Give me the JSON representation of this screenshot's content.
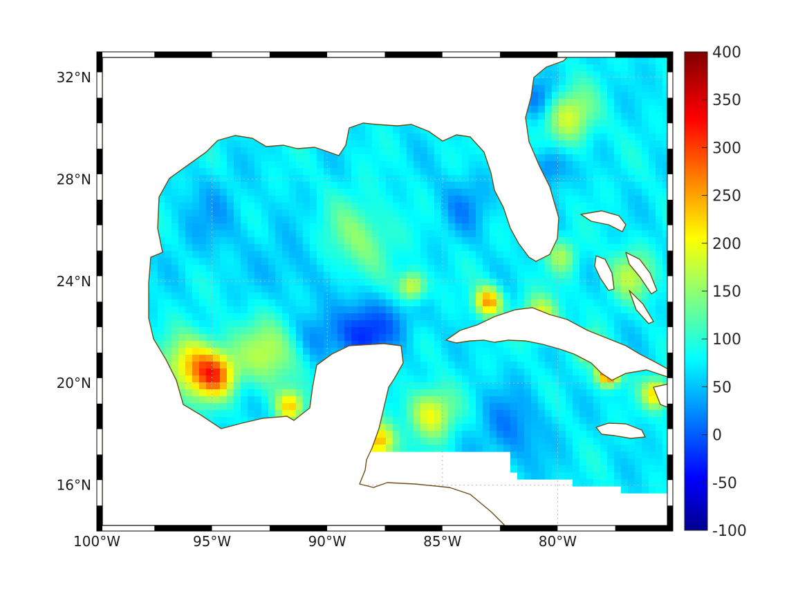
{
  "map": {
    "lon_range": [
      -100,
      -75
    ],
    "lat_range": [
      14.2,
      33
    ],
    "x_ticks": [
      {
        "lon": -100,
        "label": "100°W"
      },
      {
        "lon": -95,
        "label": "95°W"
      },
      {
        "lon": -90,
        "label": "90°W"
      },
      {
        "lon": -85,
        "label": "85°W"
      },
      {
        "lon": -80,
        "label": "80°W"
      }
    ],
    "y_ticks": [
      {
        "lat": 32,
        "label": "32°N"
      },
      {
        "lat": 28,
        "label": "28°N"
      },
      {
        "lat": 24,
        "label": "24°N"
      },
      {
        "lat": 20,
        "label": "20°N"
      },
      {
        "lat": 16,
        "label": "16°N"
      }
    ],
    "grid": true,
    "coastline_color": "#6b4a12"
  },
  "colorbar": {
    "min": -100,
    "max": 400,
    "colormap": "jet",
    "tick_labels": [
      "400",
      "350",
      "300",
      "250",
      "200",
      "150",
      "100",
      "50",
      "0",
      "-50",
      "-100"
    ]
  },
  "field": {
    "background_value": 80,
    "blobs": [
      {
        "lon": -95.8,
        "lat": 20.7,
        "r": 1.2,
        "v": 230
      },
      {
        "lon": -94.8,
        "lat": 20.3,
        "r": 0.9,
        "v": 240
      },
      {
        "lon": -92.5,
        "lat": 21.2,
        "r": 1.3,
        "v": 180
      },
      {
        "lon": -91.6,
        "lat": 19.1,
        "r": 0.6,
        "v": 220
      },
      {
        "lon": -87.8,
        "lat": 17.7,
        "r": 0.7,
        "v": 260
      },
      {
        "lon": -85.5,
        "lat": 18.8,
        "r": 1.0,
        "v": 210
      },
      {
        "lon": -86.3,
        "lat": 23.8,
        "r": 0.6,
        "v": 210
      },
      {
        "lon": -83.0,
        "lat": 23.2,
        "r": 0.6,
        "v": 260
      },
      {
        "lon": -80.7,
        "lat": 22.6,
        "r": 0.8,
        "v": 200
      },
      {
        "lon": -77.8,
        "lat": 20.4,
        "r": 0.5,
        "v": 320
      },
      {
        "lon": -78.6,
        "lat": 21.4,
        "r": 0.5,
        "v": 240
      },
      {
        "lon": -75.7,
        "lat": 19.6,
        "r": 0.6,
        "v": 230
      },
      {
        "lon": -79.5,
        "lat": 30.5,
        "r": 1.1,
        "v": 190
      },
      {
        "lon": -76.8,
        "lat": 24.2,
        "r": 1.0,
        "v": 170
      },
      {
        "lon": -79.8,
        "lat": 25.0,
        "r": 0.7,
        "v": 160
      },
      {
        "lon": -88.6,
        "lat": 25.7,
        "r": 1.5,
        "v": 150
      },
      {
        "lon": -82.0,
        "lat": 18.2,
        "r": 1.5,
        "v": 30
      },
      {
        "lon": -88.4,
        "lat": 22.0,
        "r": 1.3,
        "v": -10
      },
      {
        "lon": -90.3,
        "lat": 21.8,
        "r": 1.0,
        "v": 30
      },
      {
        "lon": -80.8,
        "lat": 31.2,
        "r": 0.8,
        "v": 20
      },
      {
        "lon": -80.4,
        "lat": 28.5,
        "r": 0.8,
        "v": 15
      },
      {
        "lon": -84.0,
        "lat": 27.0,
        "r": 1.2,
        "v": 40
      },
      {
        "lon": -95.0,
        "lat": 26.5,
        "r": 1.6,
        "v": 50
      },
      {
        "lon": -91.5,
        "lat": 24.5,
        "r": 1.4,
        "v": 50
      },
      {
        "lon": -86.5,
        "lat": 22.5,
        "r": 1.0,
        "v": 55
      }
    ]
  }
}
